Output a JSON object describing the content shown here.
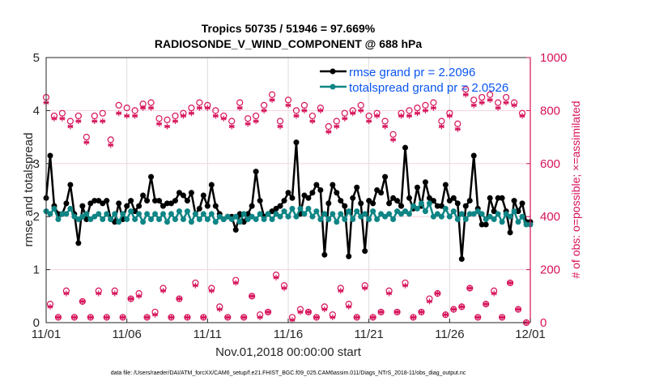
{
  "chart_data": {
    "type": "line",
    "title": [
      "Tropics 50735 / 51946 = 97.669%",
      "RADIOSONDE_V_WIND_COMPONENT @ 688 hPa"
    ],
    "xlabel": "Nov.01,2018 00:00:00 start",
    "ylabel_left": "rmse and totalspread",
    "ylabel_right": "# of obs: o=possible; ×=assimilated",
    "x_ticks": [
      "11/01",
      "11/06",
      "11/11",
      "11/16",
      "11/21",
      "11/26",
      "12/01"
    ],
    "x_tick_days": [
      0,
      5,
      10,
      15,
      20,
      25,
      30
    ],
    "xlim_days": [
      0,
      30
    ],
    "ylim_left": [
      0,
      5
    ],
    "y_ticks_left": [
      0,
      1,
      2,
      3,
      4,
      5
    ],
    "ylim_right": [
      0,
      1000
    ],
    "y_ticks_right": [
      0,
      200,
      400,
      600,
      800,
      1000
    ],
    "grid": true,
    "legend_position": "top-right",
    "legend": [
      "rmse grand pr = 2.2096",
      "totalspread grand pr = 2.0526"
    ],
    "colors": {
      "rmse": "#000000",
      "totalspread": "#0f8585",
      "obs": "#d6125a",
      "legend_text": "#0a56f0"
    },
    "x_step_days": 0.25,
    "series": [
      {
        "name": "rmse",
        "values": [
          2.35,
          3.15,
          2.2,
          2.05,
          2.05,
          2.25,
          2.6,
          2.05,
          1.5,
          2.2,
          1.95,
          2.25,
          2.3,
          2.3,
          2.25,
          2.3,
          1.95,
          1.9,
          2.25,
          1.95,
          2.2,
          2.3,
          2.1,
          2.2,
          2.4,
          2.3,
          2.75,
          2.3,
          2.3,
          2.2,
          2.25,
          2.25,
          2.3,
          2.45,
          2.4,
          2.3,
          2.45,
          2.05,
          2.15,
          2.4,
          2.2,
          2.6,
          2.2,
          2.05,
          1.95,
          2.0,
          2.0,
          1.75,
          2.05,
          1.9,
          2.05,
          2.2,
          2.85,
          2.3,
          2.0,
          2.05,
          2.1,
          2.15,
          2.2,
          2.3,
          2.45,
          2.35,
          3.4,
          2.05,
          2.4,
          2.35,
          2.45,
          2.6,
          2.5,
          1.28,
          2.25,
          2.6,
          2.45,
          2.3,
          2.2,
          1.25,
          2.35,
          2.55,
          2.25,
          1.35,
          2.3,
          2.25,
          2.5,
          2.45,
          2.75,
          2.25,
          2.35,
          2.3,
          2.2,
          3.3,
          2.35,
          2.15,
          2.55,
          2.2,
          2.65,
          2.35,
          2.3,
          2.2,
          2.2,
          2.6,
          2.3,
          2.35,
          2.25,
          1.2,
          2.2,
          2.3,
          3.15,
          2.15,
          1.85,
          1.85,
          2.35,
          2.1,
          2.35,
          2.35,
          2.1,
          1.7,
          2.3,
          2.1,
          2.25,
          1.9,
          1.9
        ]
      },
      {
        "name": "totalspread",
        "values": [
          2.1,
          2.05,
          2.15,
          1.95,
          2.05,
          2.05,
          2.15,
          2.0,
          1.95,
          2.0,
          2.05,
          1.95,
          2.0,
          2.05,
          1.95,
          2.05,
          1.95,
          2.05,
          1.9,
          2.05,
          1.95,
          2.1,
          1.95,
          2.05,
          1.9,
          2.05,
          1.95,
          2.05,
          1.95,
          2.05,
          1.9,
          2.05,
          1.95,
          2.1,
          1.95,
          2.1,
          1.9,
          2.05,
          1.95,
          2.05,
          1.95,
          2.05,
          1.9,
          2.0,
          1.95,
          2.0,
          1.95,
          2.0,
          1.9,
          2.05,
          1.95,
          2.0,
          1.95,
          2.05,
          1.95,
          2.05,
          1.95,
          2.05,
          2.0,
          2.1,
          2.0,
          2.15,
          2.0,
          2.15,
          2.05,
          2.15,
          2.0,
          2.1,
          1.95,
          2.05,
          1.95,
          2.05,
          1.9,
          2.05,
          1.95,
          2.1,
          1.95,
          2.1,
          2.0,
          2.05,
          1.95,
          2.1,
          1.95,
          2.05,
          2.0,
          2.05,
          1.95,
          2.1,
          2.05,
          2.1,
          2.05,
          2.2,
          2.15,
          2.25,
          2.1,
          2.25,
          2.0,
          2.05,
          2.0,
          2.15,
          2.0,
          2.1,
          1.95,
          2.05,
          1.95,
          2.05,
          2.05,
          2.1,
          2.05,
          1.95,
          2.0,
          1.95,
          2.05,
          1.9,
          2.05,
          2.0,
          2.1,
          1.9,
          2.0,
          1.85,
          1.85
        ]
      }
    ],
    "obs_counts_high": {
      "days": [
        0,
        0.5,
        1,
        1.5,
        2,
        2.5,
        3,
        3.5,
        4,
        4.5,
        5,
        5.5,
        6,
        6.5,
        7,
        7.5,
        8,
        8.5,
        9,
        9.5,
        10,
        10.5,
        11,
        11.5,
        12,
        12.5,
        13,
        13.5,
        14,
        14.5,
        15,
        15.5,
        16,
        16.5,
        17,
        17.5,
        18,
        18.5,
        19,
        19.5,
        20,
        20.5,
        21,
        21.5,
        22,
        22.5,
        23,
        23.5,
        24,
        24.5,
        25,
        25.5,
        26,
        26.5,
        27,
        27.5,
        28,
        28.5,
        29,
        29.5
      ],
      "possible": [
        850,
        780,
        790,
        760,
        780,
        700,
        780,
        790,
        690,
        820,
        810,
        800,
        825,
        830,
        770,
        765,
        780,
        790,
        810,
        830,
        820,
        800,
        780,
        760,
        830,
        770,
        780,
        820,
        860,
        760,
        840,
        800,
        820,
        780,
        810,
        740,
        760,
        790,
        800,
        820,
        780,
        790,
        760,
        710,
        790,
        800,
        810,
        820,
        830,
        760,
        790,
        750,
        880,
        840,
        850,
        860,
        830,
        850,
        830,
        790
      ],
      "assimilated": [
        830,
        770,
        770,
        740,
        760,
        680,
        760,
        760,
        670,
        790,
        780,
        780,
        810,
        810,
        750,
        740,
        760,
        780,
        790,
        810,
        810,
        780,
        770,
        740,
        810,
        750,
        760,
        800,
        840,
        740,
        820,
        780,
        800,
        760,
        800,
        720,
        740,
        770,
        790,
        800,
        760,
        780,
        740,
        690,
        780,
        780,
        790,
        800,
        810,
        740,
        780,
        730,
        860,
        820,
        830,
        840,
        810,
        830,
        820,
        780
      ]
    },
    "obs_counts_low": {
      "days": [
        0.25,
        0.75,
        1.25,
        1.75,
        2.25,
        2.75,
        3.25,
        3.75,
        4.25,
        4.75,
        5.25,
        5.75,
        6.25,
        6.75,
        7.25,
        7.75,
        8.25,
        8.75,
        9.25,
        9.75,
        10.25,
        10.75,
        11.25,
        11.75,
        12.25,
        12.75,
        13.25,
        13.75,
        14.25,
        14.75,
        15.25,
        15.75,
        16.25,
        16.75,
        17.25,
        17.75,
        18.25,
        18.75,
        19.25,
        19.75,
        20.25,
        20.75,
        21.25,
        21.75,
        22.25,
        22.75,
        23.25,
        23.75,
        24.25,
        24.75,
        25.25,
        25.75,
        26.25,
        26.75,
        27.25,
        27.75,
        28.25,
        28.75,
        29.25,
        29.75
      ],
      "possible": [
        70,
        20,
        120,
        20,
        80,
        20,
        120,
        20,
        120,
        20,
        90,
        110,
        20,
        40,
        130,
        20,
        90,
        20,
        150,
        20,
        130,
        60,
        20,
        160,
        20,
        100,
        30,
        40,
        180,
        140,
        20,
        50,
        40,
        20,
        60,
        30,
        130,
        70,
        20,
        140,
        20,
        40,
        120,
        40,
        150,
        20,
        40,
        90,
        110,
        30,
        50,
        60,
        130,
        20,
        70,
        120,
        20,
        150,
        50,
        0
      ],
      "assimilated": [
        60,
        20,
        110,
        20,
        80,
        20,
        110,
        20,
        110,
        20,
        90,
        100,
        20,
        30,
        120,
        20,
        90,
        20,
        140,
        20,
        120,
        50,
        20,
        150,
        20,
        100,
        20,
        40,
        170,
        130,
        10,
        40,
        40,
        20,
        50,
        20,
        120,
        60,
        20,
        130,
        20,
        40,
        110,
        40,
        140,
        20,
        40,
        80,
        110,
        30,
        50,
        60,
        130,
        20,
        70,
        110,
        20,
        150,
        50,
        0
      ]
    },
    "footnote": "data file: /Users/raeder/DAI/ATM_forcXX/CAM6_setup/f.e21.FHIST_BGC.f09_025.CAM6assim.011/Diags_NTrS_2018-11/obs_diag_output.nc"
  }
}
